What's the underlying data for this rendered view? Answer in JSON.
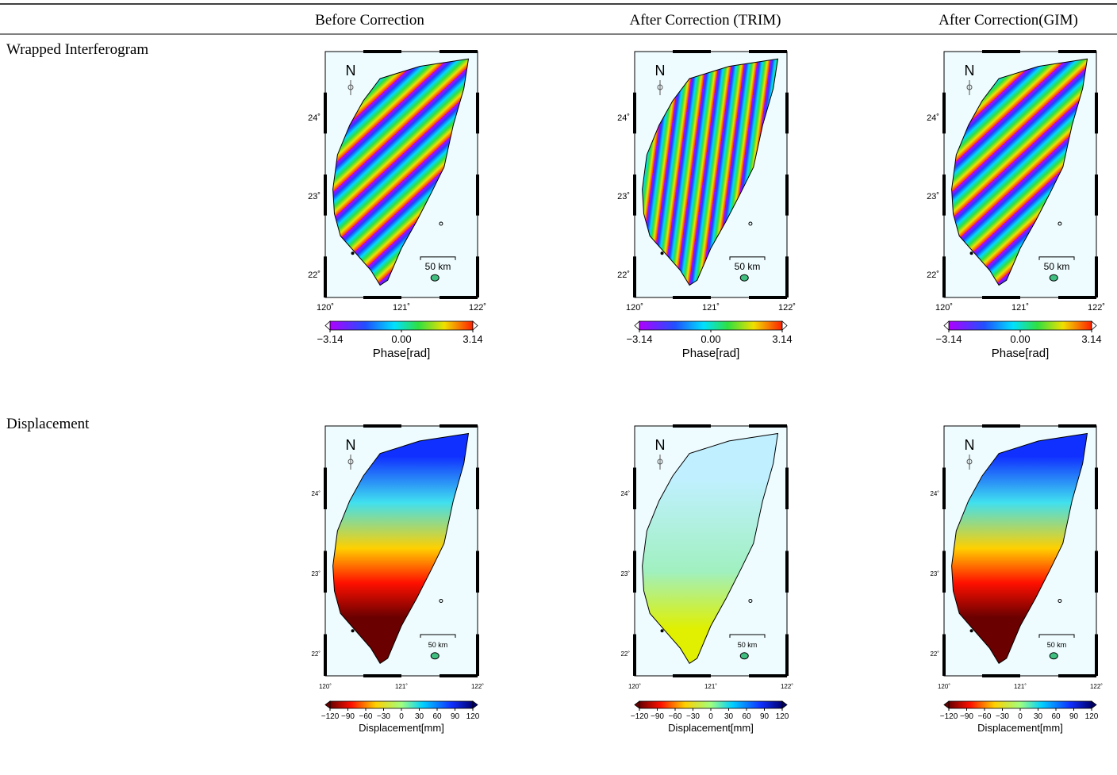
{
  "table": {
    "columns": [
      "Before Correction",
      "After Correction (TRIM)",
      "After Correction(GIM)"
    ],
    "rows": [
      {
        "label": "Wrapped Interferogram",
        "colorbar": {
          "ticks": [
            "−3.14",
            "0.00",
            "3.14"
          ],
          "label": "Phase[rad]"
        }
      },
      {
        "label": "Displacement",
        "colorbar": {
          "ticks": [
            "−120",
            "−90",
            "−60",
            "−30",
            "0",
            "30",
            "60",
            "90",
            "120"
          ],
          "label": "Displacement[mm]"
        }
      }
    ]
  },
  "map": {
    "north": "N",
    "lat_ticks": [
      "24˚",
      "23˚",
      "22˚"
    ],
    "lon_ticks": [
      "120˚",
      "121˚",
      "122˚"
    ],
    "scale": "50 km"
  }
}
